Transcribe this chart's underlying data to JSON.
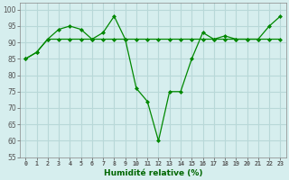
{
  "xlabel": "Humidité relative (%)",
  "background_color": "#d6eeee",
  "grid_color": "#b8d8d8",
  "line_color": "#008800",
  "xlim": [
    -0.5,
    23.5
  ],
  "ylim": [
    55,
    102
  ],
  "yticks": [
    55,
    60,
    65,
    70,
    75,
    80,
    85,
    90,
    95,
    100
  ],
  "xticks": [
    0,
    1,
    2,
    3,
    4,
    5,
    6,
    7,
    8,
    9,
    10,
    11,
    12,
    13,
    14,
    15,
    16,
    17,
    18,
    19,
    20,
    21,
    22,
    23
  ],
  "series1_x": [
    0,
    1,
    2,
    3,
    4,
    5,
    6,
    7,
    8,
    9,
    10,
    11,
    12,
    13,
    14,
    15,
    16,
    17,
    18,
    19,
    20,
    21,
    22,
    23
  ],
  "series1_y": [
    85,
    87,
    91,
    91,
    91,
    91,
    91,
    91,
    91,
    91,
    91,
    91,
    91,
    91,
    91,
    91,
    91,
    91,
    91,
    91,
    91,
    91,
    91,
    91
  ],
  "series2_x": [
    0,
    1,
    2,
    3,
    4,
    5,
    6,
    7,
    8,
    9,
    10,
    11,
    12,
    13,
    14,
    15,
    16,
    17,
    18,
    19,
    20,
    21,
    22,
    23
  ],
  "series2_y": [
    85,
    87,
    91,
    94,
    95,
    94,
    91,
    93,
    98,
    91,
    76,
    72,
    60,
    75,
    75,
    85,
    93,
    91,
    92,
    91,
    91,
    91,
    95,
    98
  ]
}
